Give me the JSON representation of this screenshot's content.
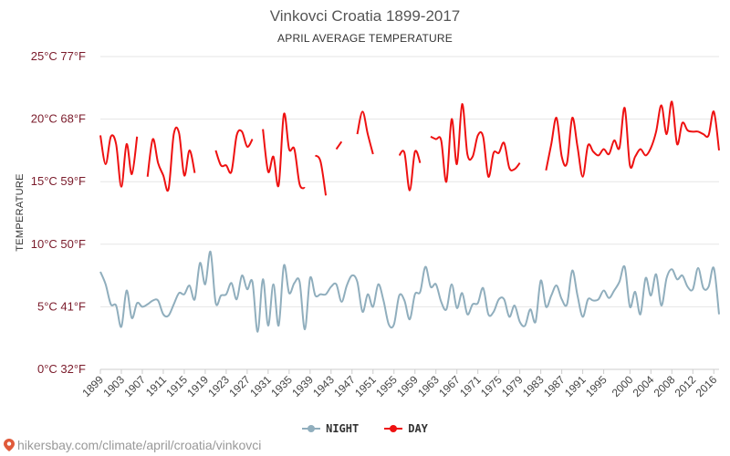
{
  "chart_data": {
    "type": "line",
    "title": "Vinkovci Croatia 1899-2017",
    "subtitle": "APRIL AVERAGE TEMPERATURE",
    "ylabel": "TEMPERATURE",
    "ylim": [
      0,
      25
    ],
    "xlim": [
      1899,
      2017
    ],
    "y_ticks": [
      {
        "value": 0,
        "label": "0°C 32°F"
      },
      {
        "value": 5,
        "label": "5°C 41°F"
      },
      {
        "value": 10,
        "label": "10°C 50°F"
      },
      {
        "value": 15,
        "label": "15°C 59°F"
      },
      {
        "value": 20,
        "label": "20°C 68°F"
      },
      {
        "value": 25,
        "label": "25°C 77°F"
      }
    ],
    "x_ticks": [
      "1899",
      "1903",
      "1907",
      "1911",
      "1915",
      "1919",
      "1923",
      "1927",
      "1931",
      "1935",
      "1939",
      "1943",
      "1947",
      "1951",
      "1955",
      "1959",
      "1963",
      "1967",
      "1971",
      "1975",
      "1979",
      "1983",
      "1987",
      "1991",
      "1995",
      "2000",
      "2004",
      "2008",
      "2012",
      "2016"
    ],
    "grid": true,
    "series": [
      {
        "name": "NIGHT",
        "color": "#90aebd",
        "x": [
          1899,
          1900,
          1901,
          1902,
          1903,
          1904,
          1905,
          1906,
          1907,
          1908,
          1909,
          1910,
          1911,
          1912,
          1913,
          1914,
          1915,
          1916,
          1917,
          1918,
          1919,
          1920,
          1921,
          1922,
          1923,
          1924,
          1925,
          1926,
          1927,
          1928,
          1929,
          1930,
          1931,
          1932,
          1933,
          1934,
          1935,
          1936,
          1937,
          1938,
          1939,
          1940,
          1941,
          1942,
          1943,
          1944,
          1945,
          1946,
          1947,
          1948,
          1949,
          1950,
          1951,
          1952,
          1953,
          1954,
          1955,
          1956,
          1957,
          1958,
          1959,
          1960,
          1961,
          1962,
          1963,
          1964,
          1965,
          1966,
          1967,
          1968,
          1969,
          1970,
          1971,
          1972,
          1973,
          1974,
          1975,
          1976,
          1977,
          1978,
          1979,
          1980,
          1981,
          1982,
          1983,
          1984,
          1985,
          1986,
          1987,
          1988,
          1989,
          1990,
          1991,
          1992,
          1993,
          1994,
          1995,
          1996,
          1997,
          1998,
          1999,
          2000,
          2001,
          2002,
          2003,
          2004,
          2005,
          2006,
          2007,
          2008,
          2009,
          2010,
          2011,
          2012,
          2013,
          2014,
          2015,
          2016,
          2017
        ],
        "values": [
          7.8,
          6.8,
          5.2,
          5.1,
          3.4,
          6.3,
          4.1,
          5.3,
          5.0,
          5.2,
          5.5,
          5.5,
          4.4,
          4.3,
          5.2,
          6.1,
          6.0,
          6.7,
          5.6,
          8.5,
          6.8,
          9.4,
          5.3,
          5.9,
          6.0,
          6.9,
          5.6,
          7.5,
          6.4,
          7.0,
          3.0,
          7.2,
          3.5,
          6.8,
          3.5,
          8.3,
          6.1,
          6.9,
          7.0,
          3.2,
          7.3,
          5.9,
          6.0,
          6.0,
          6.6,
          6.8,
          5.4,
          6.7,
          7.5,
          7.0,
          4.6,
          6.0,
          5.0,
          6.8,
          5.5,
          3.6,
          3.6,
          5.9,
          5.5,
          4.0,
          6.0,
          6.2,
          8.2,
          6.6,
          6.8,
          5.4,
          4.8,
          6.8,
          4.9,
          6.1,
          4.4,
          5.2,
          5.3,
          6.5,
          4.4,
          4.6,
          5.6,
          5.6,
          4.2,
          5.1,
          3.8,
          3.5,
          4.8,
          3.8,
          7.1,
          5.0,
          5.9,
          6.7,
          5.6,
          5.2,
          7.9,
          5.9,
          4.2,
          5.6,
          5.5,
          5.6,
          6.3,
          5.7,
          6.3,
          7.0,
          8.2,
          5.0,
          6.2,
          4.4,
          7.3,
          5.9,
          7.6,
          5.1,
          7.3,
          8.0,
          7.2,
          7.5,
          6.6,
          6.4,
          8.1,
          6.5,
          6.6,
          8.1,
          4.4
        ]
      },
      {
        "name": "DAY",
        "color": "#ee1111",
        "x": [
          1899,
          1900,
          1901,
          1902,
          1903,
          1904,
          1905,
          1906,
          1907,
          1908,
          1909,
          1910,
          1911,
          1912,
          1913,
          1914,
          1915,
          1916,
          1917,
          1918,
          1919,
          1920,
          1921,
          1922,
          1923,
          1924,
          1925,
          1926,
          1927,
          1928,
          1929,
          1930,
          1931,
          1932,
          1933,
          1934,
          1935,
          1936,
          1937,
          1938,
          1939,
          1940,
          1941,
          1942,
          1943,
          1944,
          1945,
          1946,
          1947,
          1948,
          1949,
          1950,
          1951,
          1952,
          1953,
          1954,
          1955,
          1956,
          1957,
          1958,
          1959,
          1960,
          1961,
          1962,
          1963,
          1964,
          1965,
          1966,
          1967,
          1968,
          1969,
          1970,
          1971,
          1972,
          1973,
          1974,
          1975,
          1976,
          1977,
          1978,
          1979,
          1980,
          1981,
          1982,
          1983,
          1984,
          1985,
          1986,
          1987,
          1988,
          1989,
          1990,
          1991,
          1992,
          1993,
          1994,
          1995,
          1996,
          1997,
          1998,
          1999,
          2000,
          2001,
          2002,
          2003,
          2004,
          2005,
          2006,
          2007,
          2008,
          2009,
          2010,
          2011,
          2012,
          2013,
          2014,
          2015,
          2016,
          2017
        ],
        "values": [
          18.7,
          16.4,
          18.6,
          18.0,
          14.6,
          18.0,
          15.6,
          18.6,
          null,
          15.4,
          18.4,
          16.5,
          15.5,
          14.4,
          18.8,
          18.9,
          15.5,
          17.5,
          15.7,
          null,
          null,
          null,
          17.5,
          16.3,
          16.3,
          15.8,
          18.7,
          19.0,
          17.8,
          18.4,
          null,
          19.2,
          15.8,
          17.0,
          14.7,
          20.4,
          17.6,
          17.6,
          14.8,
          14.5,
          null,
          17.1,
          16.6,
          13.9,
          null,
          17.6,
          18.2,
          null,
          null,
          18.8,
          20.6,
          18.8,
          17.2,
          null,
          null,
          null,
          null,
          17.1,
          17.3,
          14.3,
          17.4,
          16.5,
          null,
          18.6,
          18.4,
          18.3,
          15.0,
          20.0,
          16.4,
          21.2,
          17.2,
          17.0,
          18.7,
          18.6,
          15.4,
          17.3,
          17.3,
          18.1,
          16.1,
          16.0,
          16.5,
          null,
          null,
          null,
          null,
          15.9,
          18.0,
          20.1,
          17.0,
          16.5,
          20.1,
          17.8,
          15.4,
          17.9,
          17.4,
          17.1,
          17.6,
          17.2,
          18.3,
          17.7,
          20.9,
          16.3,
          17.0,
          17.6,
          17.1,
          17.7,
          19.0,
          21.1,
          18.8,
          21.4,
          18.0,
          19.7,
          19.1,
          19.0,
          19.0,
          18.8,
          18.7,
          20.6,
          17.5
        ]
      }
    ]
  },
  "legend": {
    "night_label": "NIGHT",
    "day_label": "DAY"
  },
  "footer": {
    "url": "hikersbay.com/climate/april/croatia/vinkovci"
  }
}
